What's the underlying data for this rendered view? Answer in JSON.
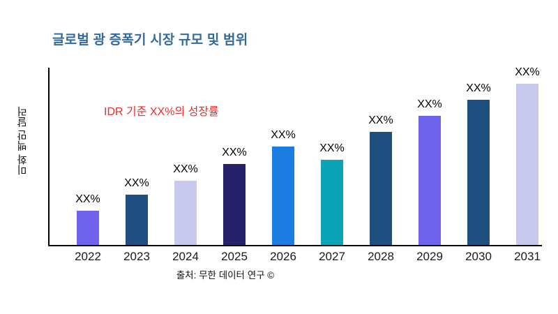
{
  "page": {
    "background": "#ffffff"
  },
  "title": {
    "text": "글로벌 광 증폭기 시장 규모 및 범위",
    "color": "#336a9e"
  },
  "annotation": {
    "text": "IDR 기준 XX%의 성장률",
    "color": "#ee2b2b"
  },
  "y_axis_label": "미화 백만 달러",
  "source": {
    "text": "출처: 무한 데이터 연구 ©"
  },
  "chart_data": {
    "type": "bar",
    "title": "글로벌 광 증폭기 시장 규모 및 범위",
    "categories": [
      "2022",
      "2023",
      "2024",
      "2025",
      "2026",
      "2027",
      "2028",
      "2029",
      "2030",
      "2031"
    ],
    "values": [
      21,
      31,
      40,
      50,
      61,
      53,
      70,
      80,
      90,
      100
    ],
    "bar_labels": [
      "XX%",
      "XX%",
      "XX%",
      "XX%",
      "XX%",
      "XX%",
      "XX%",
      "XX%",
      "XX%",
      "XX%"
    ],
    "bar_colors": [
      "#7063eb",
      "#1f4e80",
      "#c9c9ee",
      "#262168",
      "#1b7ce2",
      "#0aa3b8",
      "#1f4e80",
      "#7063eb",
      "#1f4e80",
      "#c9c9ee"
    ],
    "xlabel": "",
    "ylabel": "미화 백만 달러",
    "ylim": [
      0,
      100
    ],
    "grid": false,
    "legend": false,
    "axis_color": "#000000"
  }
}
